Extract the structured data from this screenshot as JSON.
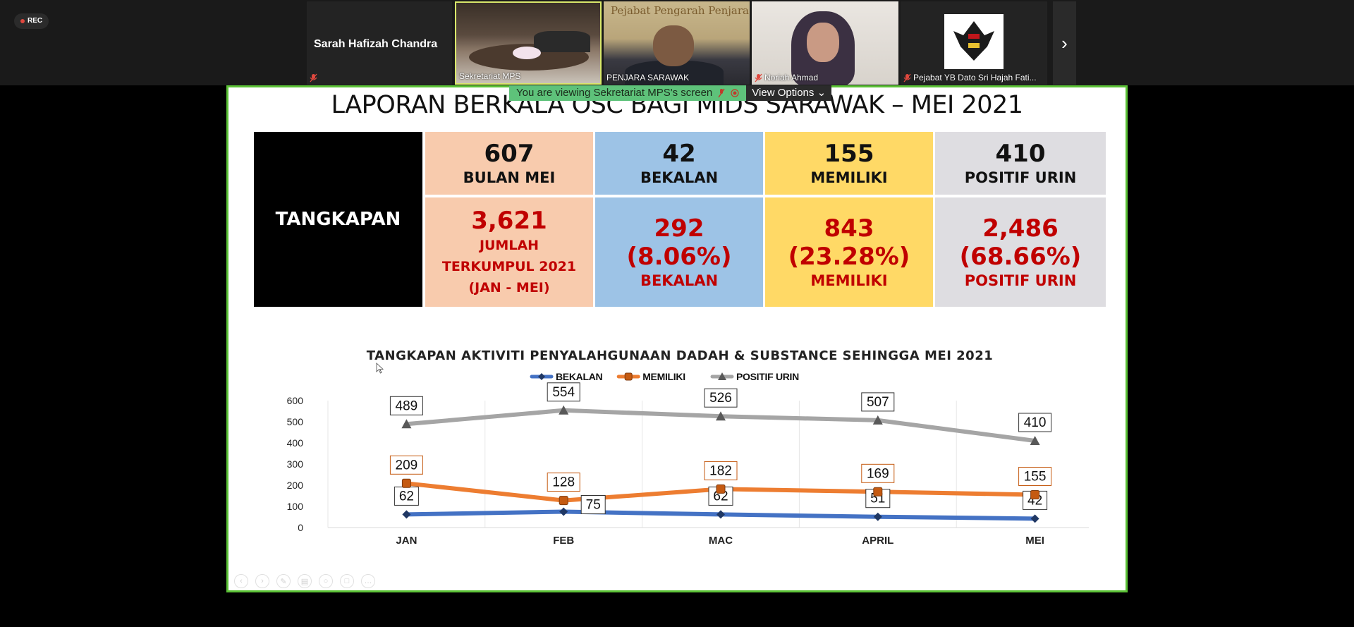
{
  "recording": {
    "label": "REC"
  },
  "participants": [
    {
      "name": "Sarah Hafizah Chandra",
      "muted": true,
      "video": false
    },
    {
      "name": "Sekretariat MPS",
      "muted": false,
      "video": true,
      "active": true
    },
    {
      "name": "PENJARA SARAWAK",
      "muted": false,
      "video": true,
      "sign": "Pejabat Pengarah Penjara"
    },
    {
      "name": "Noriah Ahmad",
      "muted": true,
      "video": true
    },
    {
      "name": "Pejabat YB Dato Sri Hajah Fati...",
      "muted": true,
      "video": true
    }
  ],
  "view_banner": {
    "text": "You are viewing Sekretariat MPS's screen",
    "options_label": "View Options"
  },
  "slide": {
    "title": "LAPORAN BERKALA OSC BAGI MIDS SARAWAK – MEI 2021",
    "row_label": "TANGKAPAN",
    "top_row": [
      {
        "value": "607",
        "label": "BULAN MEI"
      },
      {
        "value": "42",
        "label": "BEKALAN"
      },
      {
        "value": "155",
        "label": "MEMILIKI"
      },
      {
        "value": "410",
        "label": "POSITIF URIN"
      }
    ],
    "bottom_row": [
      {
        "value": "3,621",
        "line1": "JUMLAH",
        "line2": "TERKUMPUL 2021",
        "line3": "(JAN - MEI)"
      },
      {
        "value": "292",
        "line1": "(8.06%)",
        "line2": "BEKALAN"
      },
      {
        "value": "843",
        "line1": "(23.28%)",
        "line2": "MEMILIKI"
      },
      {
        "value": "2,486",
        "line1": "(68.66%)",
        "line2": "POSITIF URIN"
      }
    ]
  },
  "colors": {
    "accent_border": "#5bc236",
    "peach": "#f8cbad",
    "blue": "#9dc3e6",
    "yellow": "#ffd966",
    "grey": "#dedde1",
    "red_text": "#c00000"
  },
  "chart_data": {
    "type": "line",
    "title": "TANGKAPAN AKTIVITI PENYALAHGUNAAN DADAH & SUBSTANCE SEHINGGA MEI 2021",
    "categories": [
      "JAN",
      "FEB",
      "MAC",
      "APRIL",
      "MEI"
    ],
    "ylim": [
      0,
      600
    ],
    "yticks": [
      0,
      100,
      200,
      300,
      400,
      500,
      600
    ],
    "legend_position": "top",
    "grid": "vertical",
    "series": [
      {
        "name": "BEKALAN",
        "values": [
          62,
          75,
          62,
          51,
          42
        ],
        "color": "#4472c4",
        "marker": "diamond"
      },
      {
        "name": "MEMILIKI",
        "values": [
          209,
          128,
          182,
          169,
          155
        ],
        "color": "#ed7d31",
        "marker": "square"
      },
      {
        "name": "POSITIF URIN",
        "values": [
          489,
          554,
          526,
          507,
          410
        ],
        "color": "#a5a5a5",
        "marker": "triangle"
      }
    ]
  }
}
